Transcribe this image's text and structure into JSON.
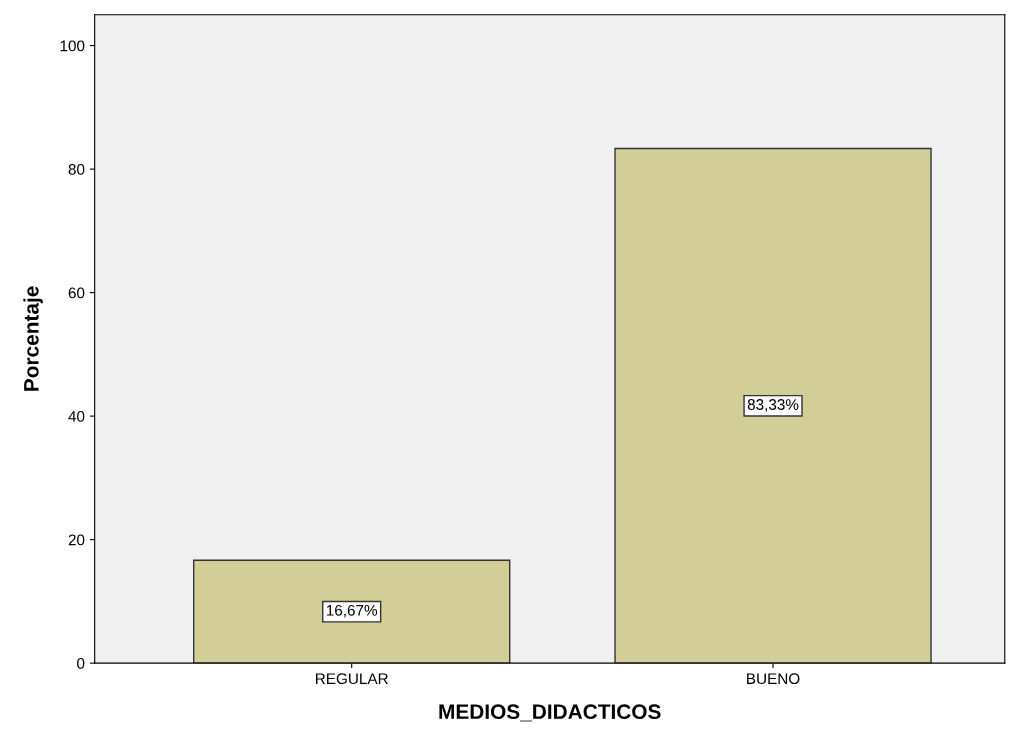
{
  "chart_data": {
    "type": "bar",
    "xlabel": "MEDIOS_DIDACTICOS",
    "ylabel": "Porcentaje",
    "categories": [
      "REGULAR",
      "BUENO"
    ],
    "values": [
      16.67,
      83.33
    ],
    "value_labels": [
      "16,67%",
      "83,33%"
    ],
    "color": "#d3cd98",
    "ylim": [
      0,
      105
    ],
    "yticks": [
      0,
      20,
      40,
      60,
      80,
      100
    ],
    "grid": false
  }
}
